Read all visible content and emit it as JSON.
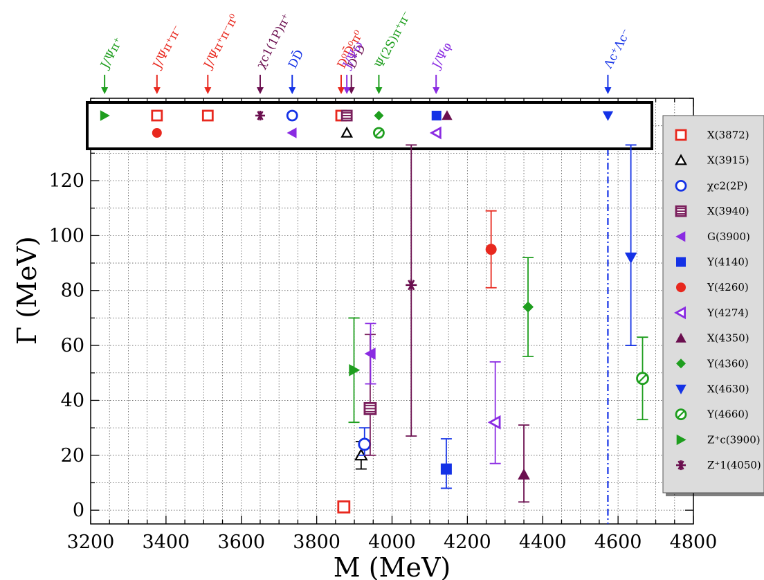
{
  "chart_data": {
    "type": "scatter",
    "xlabel": "M (MeV)",
    "ylabel": "Γ (MeV)",
    "xlim": [
      3200,
      4800
    ],
    "ylim": [
      -5,
      150
    ],
    "x_ticks": [
      3200,
      3400,
      3600,
      3800,
      4000,
      4200,
      4400,
      4600,
      4800
    ],
    "y_ticks": [
      0,
      20,
      40,
      60,
      80,
      100,
      120
    ],
    "grid": true,
    "legend_position": "right",
    "series": [
      {
        "name": "X(3872)",
        "color": "#e8281e",
        "marker": "open-square",
        "mass": 3872,
        "width": 1.2,
        "err_low": null,
        "err_high": null
      },
      {
        "name": "X(3915)",
        "color": "#000000",
        "marker": "open-triangle-up",
        "mass": 3918,
        "width": 20,
        "err_low": 15,
        "err_high": 25
      },
      {
        "name": "χc2(2P)",
        "color": "#1432e6",
        "marker": "open-circle",
        "mass": 3927,
        "width": 24,
        "err_low": 20,
        "err_high": 30
      },
      {
        "name": "X(3940)",
        "color": "#7a1f5c",
        "marker": "barred-square",
        "mass": 3942,
        "width": 37,
        "err_low": 20,
        "err_high": 64
      },
      {
        "name": "G(3900)",
        "color": "#8a2be2",
        "marker": "triangle-left",
        "mass": 3943,
        "width": 57,
        "err_low": 46,
        "err_high": 68
      },
      {
        "name": "Y(4140)",
        "color": "#1432e6",
        "marker": "square",
        "mass": 4144,
        "width": 15,
        "err_low": 8,
        "err_high": 26
      },
      {
        "name": "Y(4260)",
        "color": "#e8281e",
        "marker": "circle",
        "mass": 4263,
        "width": 95,
        "err_low": 81,
        "err_high": 109
      },
      {
        "name": "Y(4274)",
        "color": "#8a2be2",
        "marker": "open-triangle-left",
        "mass": 4274,
        "width": 32,
        "err_low": 17,
        "err_high": 54
      },
      {
        "name": "X(4350)",
        "color": "#6b0f4f",
        "marker": "triangle-up",
        "mass": 4350,
        "width": 13,
        "err_low": 3,
        "err_high": 31
      },
      {
        "name": "Y(4360)",
        "color": "#1e9e1e",
        "marker": "diamond",
        "mass": 4361,
        "width": 74,
        "err_low": 56,
        "err_high": 92
      },
      {
        "name": "X(4630)",
        "color": "#1432e6",
        "marker": "triangle-down",
        "mass": 4634,
        "width": 92,
        "err_low": 60,
        "err_high": 133
      },
      {
        "name": "Y(4660)",
        "color": "#1e9e1e",
        "marker": "barred-circle",
        "mass": 4665,
        "width": 48,
        "err_low": 33,
        "err_high": 63
      },
      {
        "name": "Z⁺c(3900)",
        "color": "#1e9e1e",
        "marker": "triangle-right",
        "mass": 3899,
        "width": 51,
        "err_low": 32,
        "err_high": 70
      },
      {
        "name": "Z⁺1(4050)",
        "color": "#6b0f4f",
        "marker": "asterisk",
        "mass": 4051,
        "width": 82,
        "err_low": 27,
        "err_high": 133
      }
    ],
    "thresholds": [
      {
        "label": "J/Ψπ⁺",
        "mass": 3237,
        "color": "#1e9e1e"
      },
      {
        "label": "J/Ψπ⁺π⁻",
        "mass": 3376,
        "color": "#e8281e"
      },
      {
        "label": "J/Ψπ⁺π⁻π⁰",
        "mass": 3511,
        "color": "#e8281e"
      },
      {
        "label": "χc1(1P)π⁺",
        "mass": 3650,
        "color": "#6b0f4f"
      },
      {
        "label": "DD̄",
        "mass": 3735,
        "color": "#1432e6"
      },
      {
        "label": "D⁰D̄⁰π⁰",
        "mass": 3865,
        "color": "#e8281e"
      },
      {
        "label": "D*D̄",
        "mass": 3892,
        "color": "#6b0f4f"
      },
      {
        "label": "J/Ψω",
        "mass": 3880,
        "color": "#8a2be2"
      },
      {
        "label": "Ψ(2S)π⁺π⁻",
        "mass": 3965,
        "color": "#1e9e1e"
      },
      {
        "label": "J/Ψφ",
        "mass": 4117,
        "color": "#8a2be2"
      },
      {
        "label": "Λc⁺Λc⁻",
        "mass": 4573,
        "color": "#1432e6"
      }
    ],
    "threshold_markers": [
      {
        "series": "Z⁺c(3900)",
        "mass": 3237,
        "row": 1
      },
      {
        "series": "X(3872)",
        "mass": 3376,
        "row": 1
      },
      {
        "series": "Y(4260)",
        "mass": 3376,
        "row": 2
      },
      {
        "series": "X(3872)",
        "mass": 3511,
        "row": 1
      },
      {
        "series": "Z⁺1(4050)",
        "mass": 3650,
        "row": 1
      },
      {
        "series": "χc2(2P)",
        "mass": 3735,
        "row": 1
      },
      {
        "series": "G(3900)",
        "mass": 3735,
        "row": 2
      },
      {
        "series": "X(3872)",
        "mass": 3865,
        "row": 1
      },
      {
        "series": "X(3940)",
        "mass": 3880,
        "row": 1
      },
      {
        "series": "X(3915)",
        "mass": 3880,
        "row": 2
      },
      {
        "series": "Y(4360)",
        "mass": 3965,
        "row": 1
      },
      {
        "series": "Y(4660)",
        "mass": 3965,
        "row": 2
      },
      {
        "series": "Y(4140)",
        "mass": 4118,
        "row": 1
      },
      {
        "series": "X(4350)",
        "mass": 4146,
        "row": 1
      },
      {
        "series": "Y(4274)",
        "mass": 4118,
        "row": 2
      },
      {
        "series": "X(4630)",
        "mass": 4573,
        "row": 1
      }
    ]
  }
}
